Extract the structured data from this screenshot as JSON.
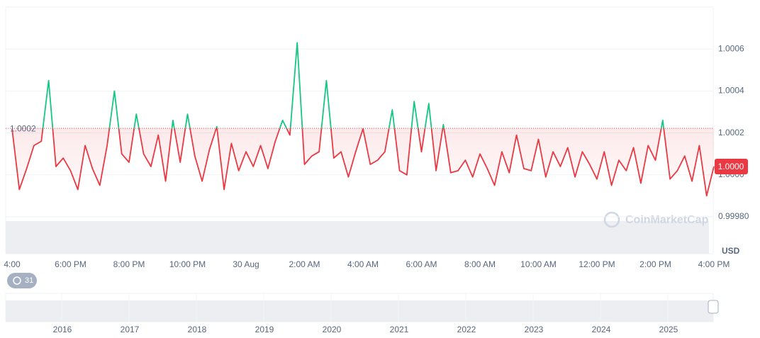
{
  "chart_data": {
    "type": "line",
    "categories": [
      "4:00",
      null,
      null,
      null,
      null,
      null,
      null,
      null,
      "6:00 PM",
      null,
      null,
      null,
      null,
      null,
      null,
      null,
      "8:00 PM",
      null,
      null,
      null,
      null,
      null,
      null,
      null,
      "10:00 PM",
      null,
      null,
      null,
      null,
      null,
      null,
      null,
      "30 Aug",
      null,
      null,
      null,
      null,
      null,
      null,
      null,
      "2:00 AM",
      null,
      null,
      null,
      null,
      null,
      null,
      null,
      "4:00 AM",
      null,
      null,
      null,
      null,
      null,
      null,
      null,
      "6:00 AM",
      null,
      null,
      null,
      null,
      null,
      null,
      null,
      "8:00 AM",
      null,
      null,
      null,
      null,
      null,
      null,
      null,
      "10:00 AM",
      null,
      null,
      null,
      null,
      null,
      null,
      null,
      "12:00 PM",
      null,
      null,
      null,
      null,
      null,
      null,
      null,
      "2:00 PM",
      null,
      null,
      null,
      null,
      null,
      null,
      null,
      "4:00 PM"
    ],
    "values": [
      1.00022,
      0.99993,
      1.00003,
      1.00014,
      1.00016,
      1.00045,
      1.00004,
      1.00008,
      1.00002,
      0.99993,
      1.00014,
      1.00003,
      0.99995,
      1.00014,
      1.0004,
      1.0001,
      1.00006,
      1.00029,
      1.0001,
      1.00004,
      1.00019,
      0.99997,
      1.00026,
      1.00006,
      1.00029,
      1.00009,
      0.99997,
      1.00012,
      1.00023,
      0.99993,
      1.00015,
      1.00002,
      1.00011,
      1.00004,
      1.00014,
      1.00003,
      1.00016,
      1.00026,
      1.00019,
      1.00063,
      1.00005,
      1.00009,
      1.00011,
      1.00045,
      1.00008,
      1.00011,
      0.99999,
      1.00011,
      1.00022,
      1.00005,
      1.00007,
      1.00011,
      1.00031,
      1.00002,
      1.0,
      1.00035,
      1.00011,
      1.00034,
      1.00002,
      1.00024,
      1.00001,
      1.00002,
      1.00007,
      0.99999,
      1.0001,
      1.00003,
      0.99995,
      1.00011,
      1.00001,
      1.00019,
      1.00003,
      1.00002,
      1.00017,
      0.99999,
      1.00011,
      1.00004,
      1.00013,
      0.99999,
      1.00011,
      1.00005,
      0.99998,
      1.00011,
      0.99995,
      1.00007,
      1.00002,
      1.00013,
      0.99996,
      1.00014,
      1.00007,
      1.00026,
      0.99998,
      1.00002,
      1.00009,
      0.99997,
      1.00014,
      0.9999,
      1.00004
    ],
    "color_above": "#16c784",
    "color_below": "#ea3943",
    "ylim": [
      0.9998,
      1.0008
    ],
    "yticks": [
      {
        "value": 0.9998,
        "label": "0.99980"
      },
      {
        "value": 1,
        "label": "1.0000"
      },
      1.0002,
      1.0004,
      1.0006
    ],
    "grid": true,
    "baseline": {
      "value": 1.000222,
      "label": "1.0002"
    },
    "current_price_label": "1.0000",
    "currency": "USD",
    "watermark": "CoinMarketCap",
    "badge": "31",
    "navigator": {
      "years": [
        2016,
        2017,
        2018,
        2019,
        2020,
        2021,
        2022,
        2023,
        2024,
        2025
      ]
    }
  }
}
